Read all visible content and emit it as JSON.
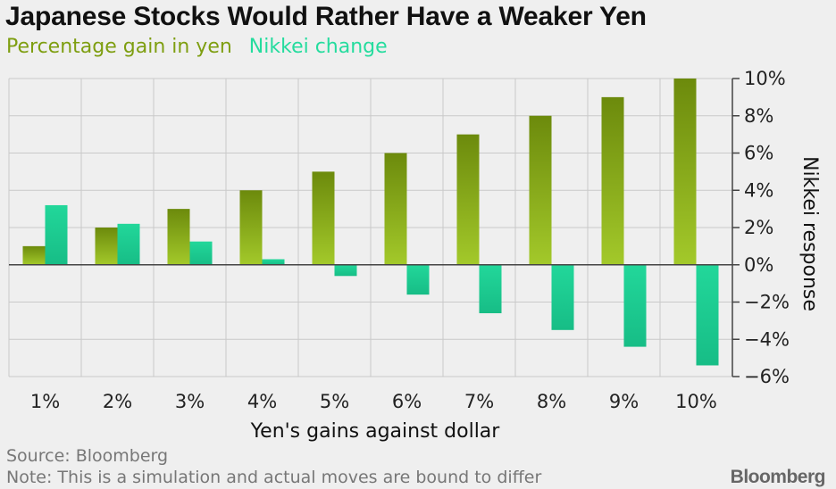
{
  "title": "Japanese Stocks Would Rather Have a Weaker Yen",
  "legend": [
    "Percentage gain in yen",
    "Nikkei change"
  ],
  "colors": {
    "series0_top": "#6c8a0c",
    "series0_bottom": "#a3c92a",
    "series1_top": "#22d79a",
    "series1_bottom": "#17bd86",
    "legend0": "#7e9e10",
    "legend1": "#25dc9e",
    "grid": "#c9c9c9",
    "axis": "#444444"
  },
  "footer": {
    "source": "Source: Bloomberg",
    "note": "Note: This is a simulation and actual moves are bound to differ",
    "brand": "Bloomberg"
  },
  "chart_data": {
    "type": "bar",
    "categories": [
      "1%",
      "2%",
      "3%",
      "4%",
      "5%",
      "6%",
      "7%",
      "8%",
      "9%",
      "10%"
    ],
    "series": [
      {
        "name": "Percentage gain in yen",
        "values": [
          1,
          2,
          3,
          4,
          5,
          6,
          7,
          8,
          9,
          10
        ]
      },
      {
        "name": "Nikkei change",
        "values": [
          3.2,
          2.2,
          1.25,
          0.3,
          -0.6,
          -1.6,
          -2.6,
          -3.5,
          -4.4,
          -5.4
        ]
      }
    ],
    "title": "Japanese Stocks Would Rather Have a Weaker Yen",
    "xlabel": "Yen's gains against dollar",
    "ylabel": "Nikkei response",
    "ylim": [
      -6,
      10
    ],
    "yticks": [
      -6,
      -4,
      -2,
      0,
      2,
      4,
      6,
      8,
      10
    ],
    "ytick_labels": [
      "−6%",
      "−4%",
      "−2%",
      "0%",
      "2%",
      "4%",
      "6%",
      "8%",
      "10%"
    ],
    "y_axis_position": "right",
    "grid": true
  }
}
